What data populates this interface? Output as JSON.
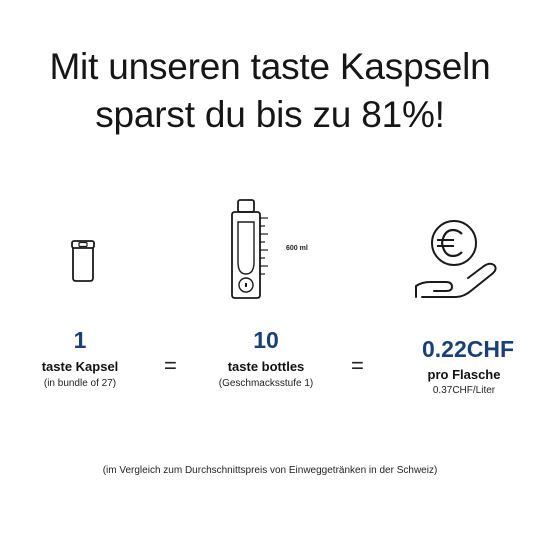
{
  "headline": {
    "line1": "Mit unseren taste Kaspseln",
    "line2": "sparst du bis zu 81%!"
  },
  "capsule": {
    "icon": "capsule-can-icon",
    "count": "1",
    "label": "taste Kapsel",
    "sub": "(in bundle of 27)"
  },
  "equals_1": "=",
  "bottle": {
    "icon": "bottle-icon",
    "volume": "600 ml",
    "count": "10",
    "label": "taste bottles",
    "sub": "(Geschmacksstufe 1)"
  },
  "equals_2": "=",
  "price": {
    "icon": "euro-coin-hand-icon",
    "value": "0.22CHF",
    "label": "pro Flasche",
    "sub": "0.37CHF/Liter"
  },
  "footnote": "(im Vergleich zum Durchschnittspreis von Einweggetränken in der Schweiz)",
  "colors": {
    "accent": "#1b3f77",
    "text": "#111111",
    "background": "#ffffff"
  }
}
